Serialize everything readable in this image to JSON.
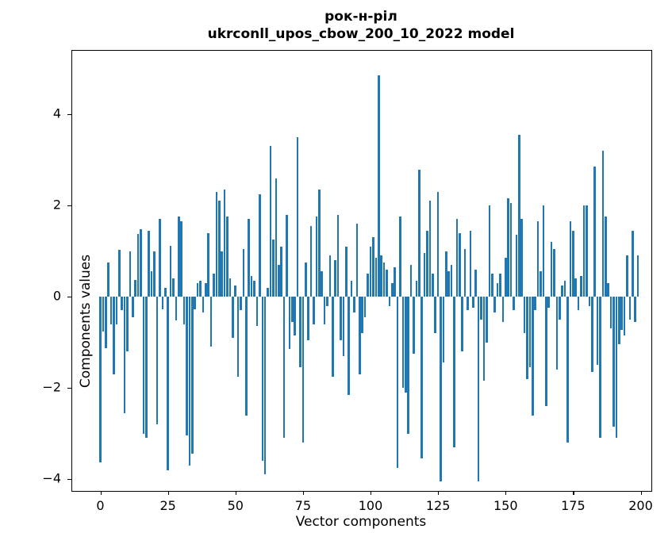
{
  "figure": {
    "title_line1": "рок-н-ріл",
    "title_line2": "ukrconll_upos_cbow_200_10_2022 model",
    "xlabel": "Vector components",
    "ylabel": "Components values"
  },
  "chart_data": {
    "type": "bar",
    "title": "рок-н-ріл\nukrconll_upos_cbow_200_10_2022 model",
    "xlabel": "Vector components",
    "ylabel": "Components values",
    "bar_color": "#1f77b4",
    "grid": false,
    "legend": null,
    "x_ticks": [
      0,
      25,
      50,
      75,
      100,
      125,
      150,
      175,
      200
    ],
    "y_ticks": [
      -4,
      -2,
      0,
      2,
      4
    ],
    "xlim": [
      -10.4,
      204
    ],
    "ylim": [
      -4.26,
      5.39
    ],
    "n_components": 200,
    "values": [
      -3.63,
      -0.77,
      -1.13,
      0.74,
      -0.6,
      -1.7,
      -0.6,
      1.03,
      -0.3,
      -2.55,
      -1.2,
      1.0,
      -0.45,
      0.37,
      1.38,
      1.47,
      -3.0,
      -3.1,
      1.44,
      0.55,
      1.0,
      -2.8,
      1.7,
      -0.27,
      0.2,
      -3.8,
      1.12,
      0.4,
      -0.53,
      1.75,
      1.65,
      -0.6,
      -3.05,
      -3.7,
      -3.45,
      -0.27,
      0.3,
      0.35,
      -0.35,
      0.3,
      1.4,
      -1.1,
      0.5,
      2.3,
      2.1,
      1.0,
      2.35,
      1.75,
      0.4,
      -0.9,
      0.25,
      -1.75,
      -0.3,
      1.05,
      -2.6,
      1.7,
      0.45,
      0.35,
      -0.65,
      2.25,
      -3.6,
      -3.9,
      0.2,
      3.3,
      1.25,
      2.6,
      0.7,
      1.1,
      -3.1,
      1.8,
      -1.15,
      -0.55,
      -0.85,
      3.5,
      -1.55,
      -3.2,
      0.75,
      -0.95,
      1.55,
      -0.6,
      1.75,
      2.35,
      0.55,
      -0.6,
      -0.2,
      0.9,
      -1.75,
      0.8,
      1.8,
      -0.95,
      -1.3,
      1.1,
      -2.15,
      0.35,
      -0.35,
      1.6,
      -1.7,
      -0.8,
      -0.45,
      0.5,
      1.1,
      1.3,
      0.85,
      4.85,
      0.9,
      0.75,
      0.6,
      -0.2,
      0.3,
      0.65,
      -3.75,
      1.75,
      -2.0,
      -2.1,
      -3.0,
      0.7,
      -1.25,
      0.35,
      2.78,
      -3.55,
      0.95,
      1.45,
      2.1,
      0.5,
      -0.8,
      2.3,
      -4.05,
      -1.45,
      1.0,
      0.55,
      0.7,
      -3.3,
      1.7,
      1.4,
      -1.2,
      1.05,
      -0.3,
      1.45,
      -0.25,
      0.6,
      -4.05,
      -0.5,
      -1.85,
      -1.0,
      2.0,
      0.5,
      -0.35,
      0.3,
      0.5,
      -0.55,
      0.85,
      2.15,
      2.05,
      -0.3,
      1.35,
      3.55,
      1.7,
      -0.8,
      -1.8,
      -1.55,
      -2.6,
      -0.3,
      1.65,
      0.55,
      2.0,
      -2.4,
      -0.25,
      1.2,
      1.05,
      -1.6,
      -0.5,
      0.25,
      0.35,
      -3.2,
      1.65,
      1.45,
      0.4,
      -0.3,
      0.45,
      2.0,
      2.0,
      -0.2,
      -1.65,
      2.85,
      -1.5,
      -3.1,
      3.2,
      1.75,
      0.3,
      -0.7,
      -2.85,
      -3.1,
      -1.05,
      -0.73,
      -0.85,
      0.9,
      -0.5,
      1.45,
      -0.56,
      0.9
    ]
  }
}
